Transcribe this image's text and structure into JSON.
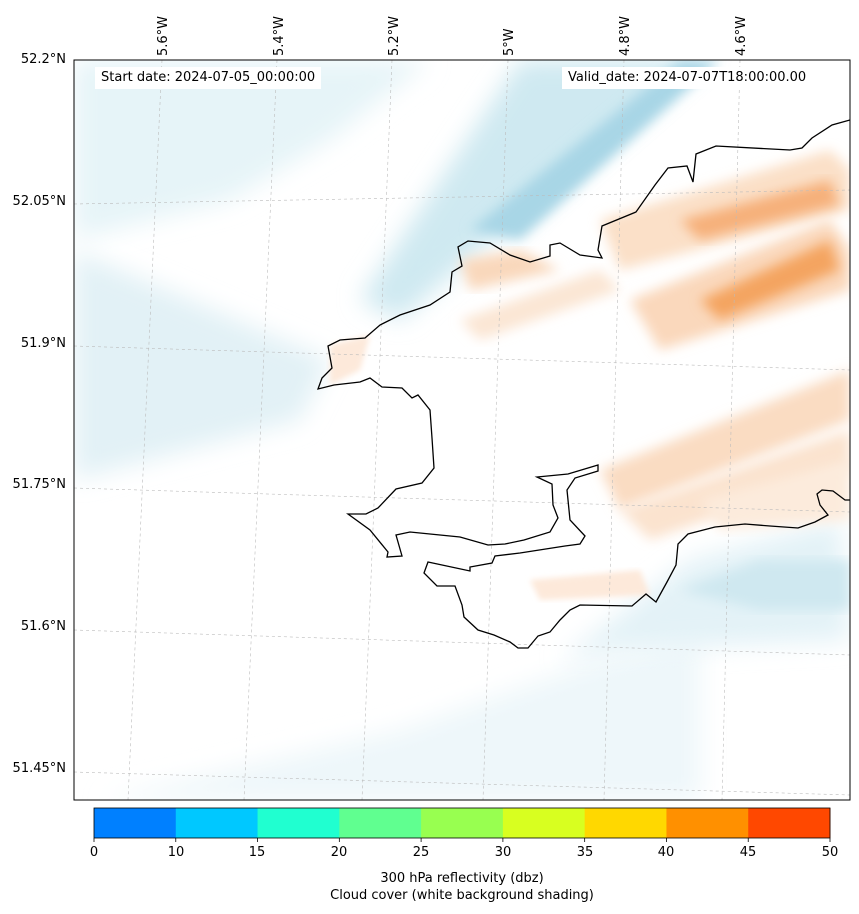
{
  "header": {
    "start_date": "Start date: 2024-07-05_00:00:00",
    "valid_date": "Valid_date: 2024-07-07T18:00:00.00"
  },
  "axes": {
    "lon_labels": [
      "5.6°W",
      "5.4°W",
      "5.2°W",
      "5°W",
      "4.8°W",
      "4.6°W"
    ],
    "lat_labels": [
      "52.2°N",
      "52.05°N",
      "51.9°N",
      "51.75°N",
      "51.6°N",
      "51.45°N"
    ]
  },
  "colorbar": {
    "ticks": [
      "0",
      "10",
      "15",
      "20",
      "25",
      "30",
      "35",
      "40",
      "45",
      "50"
    ],
    "colors": [
      "#0080ff",
      "#00c8ff",
      "#20ffd0",
      "#60ff90",
      "#98ff50",
      "#d8ff20",
      "#ffd800",
      "#ff9000",
      "#ff4800"
    ],
    "title_line1": "300 hPa reflectivity (dbz)",
    "title_line2": "Cloud cover (white background shading)"
  },
  "colors": {
    "coastline": "#000000",
    "cloud": "#add8e6",
    "reflectivity": "#f4a460",
    "grid": "#bbbbbb"
  }
}
